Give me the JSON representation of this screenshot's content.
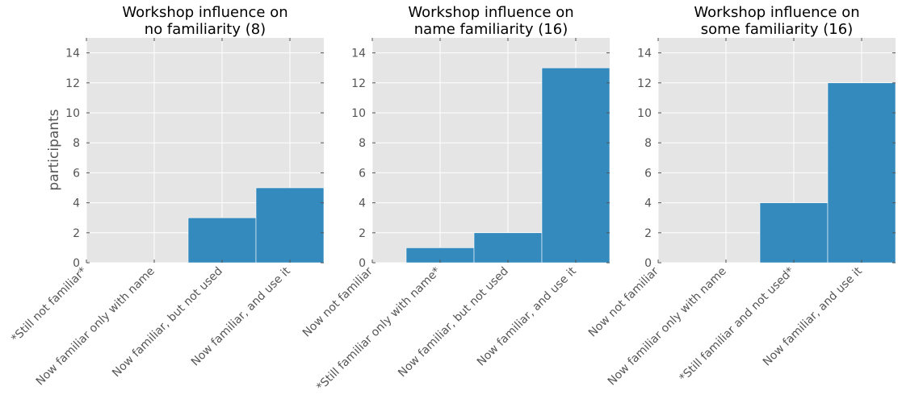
{
  "figure": {
    "ylabel": "participants"
  },
  "chart_data": [
    {
      "type": "bar",
      "title": [
        "Workshop influence on",
        "no familiarity (8)"
      ],
      "categories": [
        "*Still not familiar*",
        "Now familiar only with name",
        "Now familiar, but not used",
        "Now familiar, and use it"
      ],
      "values": [
        0,
        0,
        3,
        5
      ],
      "ylabel": "participants",
      "ylim": [
        0,
        15
      ],
      "yticks": [
        0,
        2,
        4,
        6,
        8,
        10,
        12,
        14
      ],
      "grid": true,
      "color": "#348ABD"
    },
    {
      "type": "bar",
      "title": [
        "Workshop influence on",
        "name familiarity (16)"
      ],
      "categories": [
        "Now not familiar",
        "*Still familiar only with name*",
        "Now familiar, but not used",
        "Now familiar, and use it"
      ],
      "values": [
        0,
        1,
        2,
        13
      ],
      "ylabel": "",
      "ylim": [
        0,
        15
      ],
      "yticks": [
        0,
        2,
        4,
        6,
        8,
        10,
        12,
        14
      ],
      "grid": true,
      "color": "#348ABD"
    },
    {
      "type": "bar",
      "title": [
        "Workshop influence on",
        "some familiarity (16)"
      ],
      "categories": [
        "Now not familiar",
        "Now familiar only with name",
        "*Still familiar and not used*",
        "Now familiar, and use it"
      ],
      "values": [
        0,
        0,
        4,
        12
      ],
      "ylabel": "",
      "ylim": [
        0,
        15
      ],
      "yticks": [
        0,
        2,
        4,
        6,
        8,
        10,
        12,
        14
      ],
      "grid": true,
      "color": "#348ABD"
    }
  ],
  "colors": {
    "axes_bg": "#E5E5E5",
    "grid": "#FFFFFF",
    "bar": "#348ABD",
    "tick_text": "#555555"
  }
}
